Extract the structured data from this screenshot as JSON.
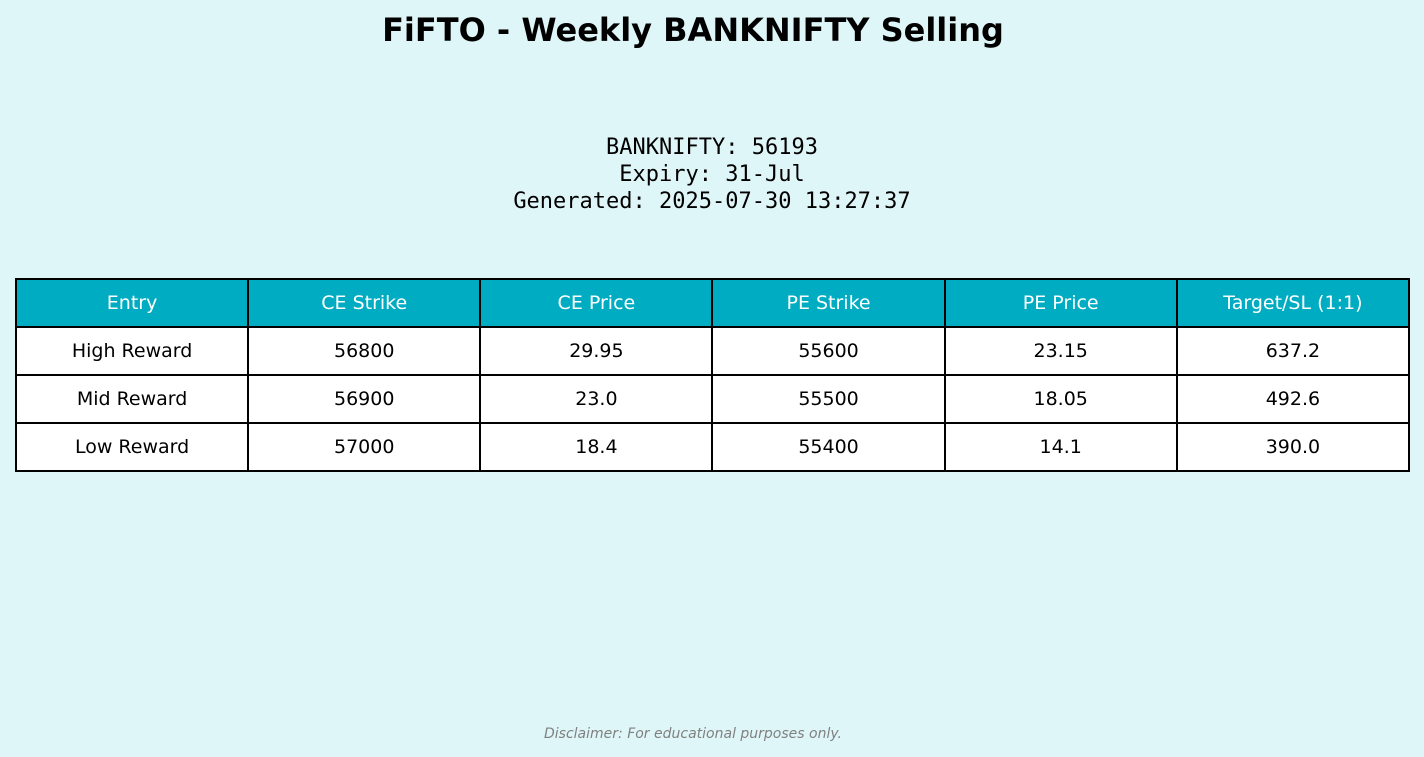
{
  "title": "FiFTO - Weekly BANKNIFTY Selling",
  "info": {
    "index_line": "BANKNIFTY: 56193",
    "expiry_line": "Expiry: 31-Jul",
    "generated_line": "Generated: 2025-07-30 13:27:37"
  },
  "table": {
    "headers": [
      "Entry",
      "CE Strike",
      "CE Price",
      "PE Strike",
      "PE Price",
      "Target/SL (1:1)"
    ],
    "rows": [
      [
        "High Reward",
        "56800",
        "29.95",
        "55600",
        "23.15",
        "637.2"
      ],
      [
        "Mid Reward",
        "56900",
        "23.0",
        "55500",
        "18.05",
        "492.6"
      ],
      [
        "Low Reward",
        "57000",
        "18.4",
        "55400",
        "14.1",
        "390.0"
      ]
    ]
  },
  "disclaimer": "Disclaimer: For educational purposes only.",
  "colors": {
    "background": "#dff6f8",
    "header_bg": "#00acc1",
    "header_text": "#ffffff",
    "disclaimer_text": "#808080"
  }
}
